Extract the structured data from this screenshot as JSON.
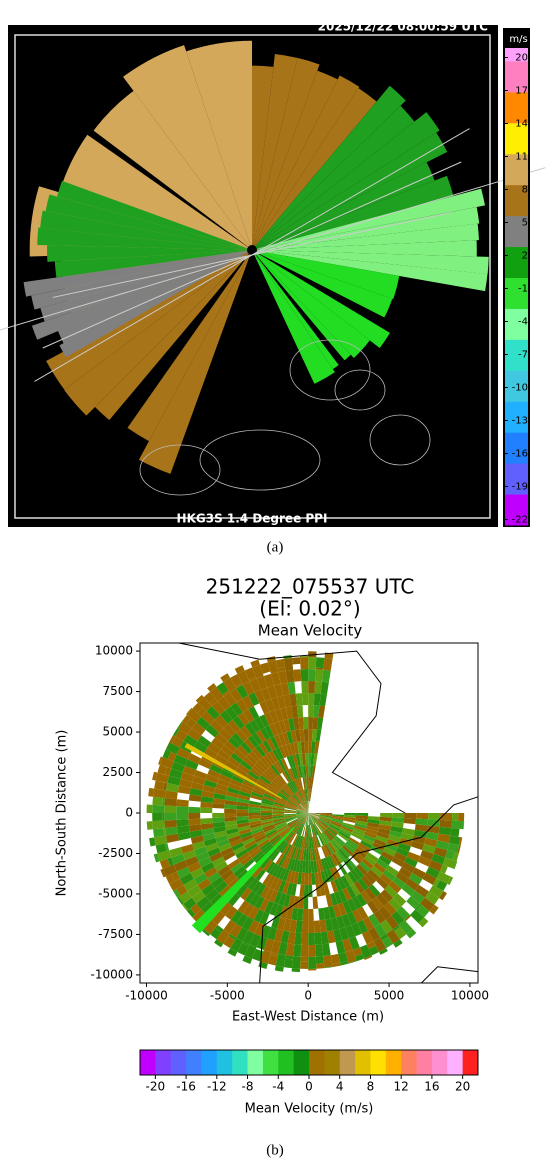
{
  "chart_data": [
    {
      "type": "ppi_image",
      "timestamp": "2025/12/22  08:00:59 UTC",
      "title": "HKG3S 1.4 Degree PPI",
      "caption": "(a)",
      "colorbar": {
        "unit": "m/s",
        "ticks": [
          20,
          17,
          14,
          11,
          8,
          5,
          2,
          -1,
          -4,
          -7,
          -10,
          -13,
          -16,
          -19,
          -22
        ],
        "lim": [
          -22.5,
          22.5
        ],
        "colors": [
          "#c000ff",
          "#6060ff",
          "#2080ff",
          "#20b0ff",
          "#40c8e0",
          "#30e0c8",
          "#80ffa0",
          "#30e030",
          "#10a010",
          "#808080",
          "#a8741a",
          "#d4a85a",
          "#ffee00",
          "#ff8800",
          "#ff80c0",
          "#ffa0ff"
        ]
      }
    },
    {
      "type": "ppi_axes",
      "title": "251222_075537 UTC",
      "subtitle": "(El: 0.02°)",
      "plot_title": "Mean Velocity",
      "xlabel": "East-West Distance (m)",
      "ylabel": "North-South Distance (m)",
      "xlim": [
        -10400,
        10500
      ],
      "ylim": [
        -10500,
        10500
      ],
      "xticks": [
        -10000,
        -5000,
        0,
        5000,
        10000
      ],
      "yticks": [
        -10000,
        -7500,
        -5000,
        -2500,
        0,
        2500,
        5000,
        7500,
        10000
      ],
      "caption": "(b)",
      "colorbar": {
        "label": "Mean Velocity (m/s)",
        "ticks": [
          -20,
          -16,
          -12,
          -8,
          -4,
          0,
          4,
          8,
          12,
          16,
          20
        ],
        "lim": [
          -22,
          22
        ],
        "colors": [
          "#c000ff",
          "#8040ff",
          "#6060ff",
          "#4080ff",
          "#20a0ff",
          "#20c0e0",
          "#30e0c0",
          "#80ffa0",
          "#40e040",
          "#20c020",
          "#109010",
          "#a07000",
          "#a08000",
          "#c09850",
          "#e0c000",
          "#ffe000",
          "#ffb000",
          "#ff8060",
          "#ff80a0",
          "#ff90d0",
          "#ffb0ff",
          "#ff2020"
        ]
      }
    }
  ]
}
